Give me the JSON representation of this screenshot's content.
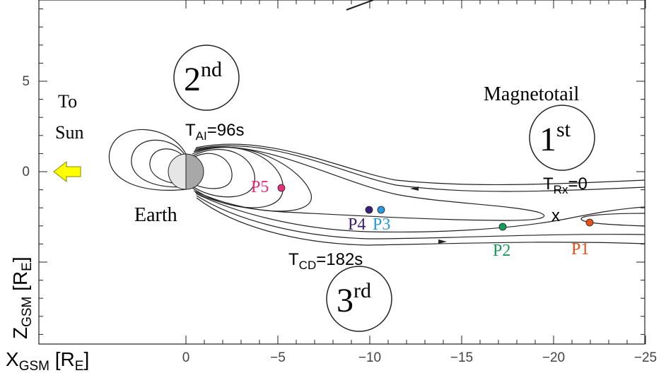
{
  "axes": {
    "x_label": {
      "main": "X",
      "sub": "GSM",
      "mid": " [R",
      "sub2": "E",
      "end": "]"
    },
    "y_label": {
      "main": "Z",
      "sub": "GSM",
      "mid": " [R",
      "sub2": "E",
      "end": "]"
    },
    "x_tick_labels": [
      "0",
      "−5",
      "−10",
      "−15",
      "−20",
      "−25"
    ],
    "y_tick_labels": [
      "5",
      "0"
    ]
  },
  "labels": {
    "to": "To",
    "sun": "Sun",
    "earth": "Earth",
    "magnetotail": "Magnetotail",
    "x_point": "x"
  },
  "steps": [
    {
      "num": "1",
      "sup": "st",
      "time": {
        "main": "T",
        "sub": "Rx",
        "rest": "=0"
      }
    },
    {
      "num": "2",
      "sup": "nd",
      "time": {
        "main": "T",
        "sub": "AI",
        "rest": "=96s"
      }
    },
    {
      "num": "3",
      "sup": "rd",
      "time": {
        "main": "T",
        "sub": "CD",
        "rest": "=182s"
      }
    }
  ],
  "probes": [
    "P1",
    "P2",
    "P3",
    "P4",
    "P5"
  ]
}
